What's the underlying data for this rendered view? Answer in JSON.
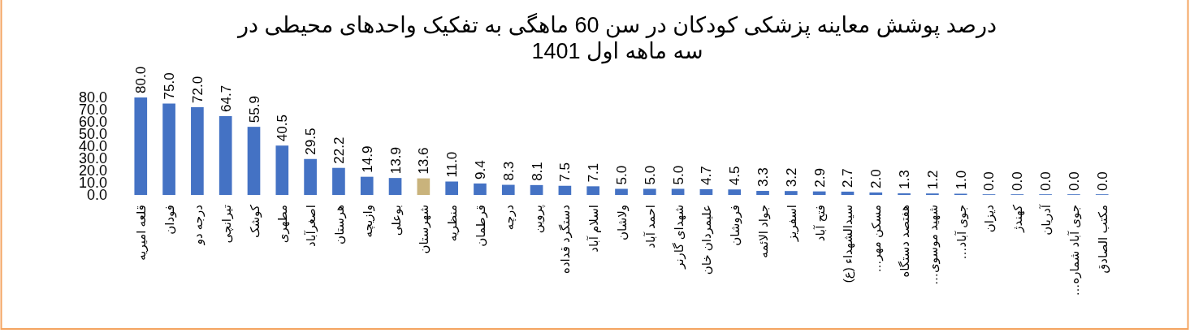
{
  "chart_data": {
    "type": "bar",
    "title": "درصد پوشش معاینه پزشکی کودکان در سن 60 ماهگی به تفکیک واحدهای محیطی در سه ماهه اول 1401",
    "categories": [
      "قلعه امیریه",
      "فودان",
      "درجه دو",
      "تیرانچی",
      "کوشک",
      "مطهری",
      "اصغرآباد",
      "هرستان",
      "وازیچه",
      "بوعلی",
      "شهرستان",
      "منظریه",
      "قرطمان",
      "درچه",
      "پروین",
      "دستگرد قداده",
      "اسلام آباد",
      "ولاشان",
      "احمد آباد",
      "شهدای گارنر",
      "علیمردان خان",
      "فروشان",
      "جواد الائمه",
      "اسفریز",
      "فتح آباد",
      "سیدالشهداء (ع)",
      "مسکن مهر…",
      "هفتصد دستگاه",
      "شهید موسوی…",
      "جوی آباد…",
      "دیزان",
      "کهندژ",
      "آدریان",
      "جوی آباد شماره…",
      "مکتب الصادق"
    ],
    "values": [
      80.0,
      75.0,
      72.0,
      64.7,
      55.9,
      40.5,
      29.5,
      22.2,
      14.9,
      13.9,
      13.6,
      11.0,
      9.4,
      8.3,
      8.1,
      7.5,
      7.1,
      5.0,
      5.0,
      5.0,
      4.7,
      4.5,
      3.3,
      3.2,
      2.9,
      2.7,
      2.0,
      1.3,
      1.2,
      1.0,
      0,
      0,
      0,
      0,
      0
    ],
    "value_labels": [
      "80.0",
      "75.0",
      "72.0",
      "64.7",
      "55.9",
      "40.5",
      "29.5",
      "22.2",
      "14.9",
      "13.9",
      "13.6",
      "11.0",
      "9.4",
      "8.3",
      "8.1",
      "7.5",
      "7.1",
      "5.0",
      "5.0",
      "5.0",
      "4.7",
      "4.5",
      "3.3",
      "3.2",
      "2.9",
      "2.7",
      "2.0",
      "1.3",
      "1.2",
      "1.0",
      "0.0",
      "0.0",
      "0.0",
      "0.0",
      "0.0"
    ],
    "colors": [
      "#4472c4",
      "#4472c4",
      "#4472c4",
      "#4472c4",
      "#4472c4",
      "#4472c4",
      "#4472c4",
      "#4472c4",
      "#4472c4",
      "#4472c4",
      "#c9b37c",
      "#4472c4",
      "#4472c4",
      "#4472c4",
      "#4472c4",
      "#4472c4",
      "#4472c4",
      "#4472c4",
      "#4472c4",
      "#4472c4",
      "#4472c4",
      "#4472c4",
      "#4472c4",
      "#4472c4",
      "#4472c4",
      "#4472c4",
      "#4472c4",
      "#4472c4",
      "#4472c4",
      "#4472c4",
      "#4472c4",
      "#4472c4",
      "#4472c4",
      "#4472c4",
      "#4472c4"
    ],
    "ylim": [
      0,
      80
    ],
    "yticks": [
      {
        "value": 0,
        "label": "0.0"
      },
      {
        "value": 10,
        "label": "10.0"
      },
      {
        "value": 20,
        "label": "20.0"
      },
      {
        "value": 30,
        "label": "30.0"
      },
      {
        "value": 40,
        "label": "40.0"
      },
      {
        "value": 50,
        "label": "50.0"
      },
      {
        "value": 60,
        "label": "60.0"
      },
      {
        "value": 70,
        "label": "70.0"
      },
      {
        "value": 80,
        "label": "80.0"
      }
    ],
    "grid": false
  }
}
